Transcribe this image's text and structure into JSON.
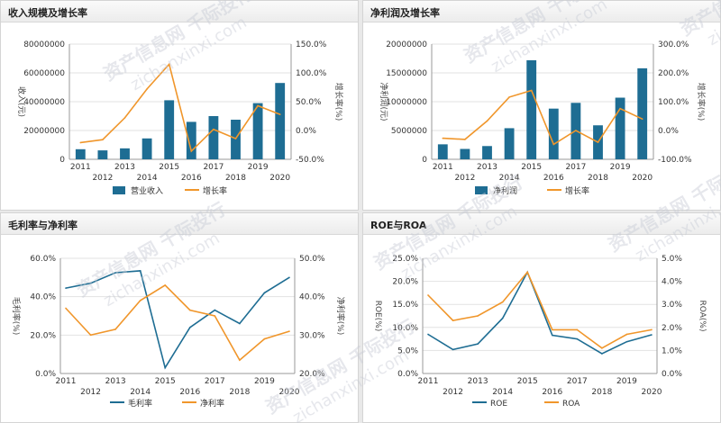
{
  "panels": [
    {
      "title": "收入规模及增长率",
      "chart_data": {
        "type": "bar",
        "categories": [
          "2011",
          "2012",
          "2013",
          "2014",
          "2015",
          "2016",
          "2017",
          "2018",
          "2019",
          "2020"
        ],
        "series": [
          {
            "name": "营业收入",
            "type": "bar",
            "axis": "left",
            "color": "#1e6d93",
            "values": [
              7000000,
              6200000,
              7600000,
              14500000,
              41000000,
              26000000,
              30000000,
              27500000,
              39000000,
              53000000
            ]
          },
          {
            "name": "增长率",
            "type": "line",
            "axis": "right",
            "color": "#f0962b",
            "values": [
              -21,
              -16,
              22,
              72,
              115,
              -36,
              2,
              -14,
              43,
              28
            ]
          }
        ],
        "ylabel": "收入(元)",
        "y2label": "增长率(%)",
        "ylim": [
          0,
          80000000
        ],
        "yticks": [
          "0",
          "20000000",
          "40000000",
          "60000000",
          "80000000"
        ],
        "y2lim": [
          -50,
          150
        ],
        "y2ticks": [
          "-50.0%",
          "0.0%",
          "50.0%",
          "100.0%",
          "150.0%"
        ],
        "grid": true,
        "legend": "bottom-center"
      }
    },
    {
      "title": "净利润及增长率",
      "chart_data": {
        "type": "bar",
        "categories": [
          "2011",
          "2012",
          "2013",
          "2014",
          "2015",
          "2016",
          "2017",
          "2018",
          "2019",
          "2020"
        ],
        "series": [
          {
            "name": "净利润",
            "type": "bar",
            "axis": "left",
            "color": "#1e6d93",
            "values": [
              2600000,
              1800000,
              2300000,
              5400000,
              17200000,
              8800000,
              9800000,
              5900000,
              10700000,
              15800000
            ]
          },
          {
            "name": "增长率",
            "type": "line",
            "axis": "right",
            "color": "#f0962b",
            "values": [
              -27,
              -31,
              33,
              116,
              139,
              -48,
              0,
              -41,
              76,
              40
            ]
          }
        ],
        "ylabel": "净利润(元)",
        "y2label": "增长率(%)",
        "ylim": [
          0,
          20000000
        ],
        "yticks": [
          "0",
          "5000000",
          "10000000",
          "15000000",
          "20000000"
        ],
        "y2lim": [
          -100,
          300
        ],
        "y2ticks": [
          "-100.0%",
          "0.0%",
          "100.0%",
          "200.0%",
          "300.0%"
        ],
        "grid": true,
        "legend": "bottom-center"
      }
    },
    {
      "title": "毛利率与净利率",
      "chart_data": {
        "type": "line",
        "categories": [
          "2011",
          "2012",
          "2013",
          "2014",
          "2015",
          "2016",
          "2017",
          "2018",
          "2019",
          "2020"
        ],
        "series": [
          {
            "name": "毛利率",
            "type": "line",
            "axis": "left",
            "color": "#1e6d93",
            "values": [
              44.5,
              47,
              52.5,
              53.5,
              3,
              24,
              33,
              26,
              42,
              50
            ]
          },
          {
            "name": "净利率",
            "type": "line",
            "axis": "right",
            "color": "#f0962b",
            "values": [
              37,
              30,
              31.5,
              39,
              43,
              36.5,
              35,
              23.5,
              29,
              31
            ]
          }
        ],
        "ylabel": "毛利率(%)",
        "y2label": "净利率(%)",
        "ylim": [
          0,
          60
        ],
        "yticks": [
          "0.0%",
          "20.0%",
          "40.0%",
          "60.0%"
        ],
        "y2lim": [
          20,
          50
        ],
        "y2ticks": [
          "20.0%",
          "30.0%",
          "40.0%",
          "50.0%"
        ],
        "grid": true,
        "legend": "bottom-center"
      }
    },
    {
      "title": "ROE与ROA",
      "chart_data": {
        "type": "line",
        "categories": [
          "2011",
          "2012",
          "2013",
          "2014",
          "2015",
          "2016",
          "2017",
          "2018",
          "2019",
          "2020"
        ],
        "series": [
          {
            "name": "ROE",
            "type": "line",
            "axis": "left",
            "color": "#1e6d93",
            "values": [
              8.5,
              5.2,
              6.4,
              12,
              22,
              8.3,
              7.5,
              4.3,
              6.9,
              8.4
            ]
          },
          {
            "name": "ROA",
            "type": "line",
            "axis": "right",
            "color": "#f0962b",
            "values": [
              3.4,
              2.3,
              2.5,
              3.1,
              4.4,
              1.9,
              1.9,
              1.1,
              1.7,
              1.9
            ]
          }
        ],
        "ylabel": "ROE(%)",
        "y2label": "ROA(%)",
        "ylim": [
          0,
          25
        ],
        "yticks": [
          "0.0%",
          "5.0%",
          "10.0%",
          "15.0%",
          "20.0%",
          "25.0%"
        ],
        "y2lim": [
          0,
          5
        ],
        "y2ticks": [
          "0.0%",
          "1.0%",
          "2.0%",
          "3.0%",
          "4.0%",
          "5.0%"
        ],
        "grid": true,
        "legend": "bottom-center"
      }
    }
  ],
  "watermark": {
    "lines": [
      "资产信息网 千际投行",
      "zichanxinxi.com"
    ],
    "color": "#c8ccd6"
  }
}
